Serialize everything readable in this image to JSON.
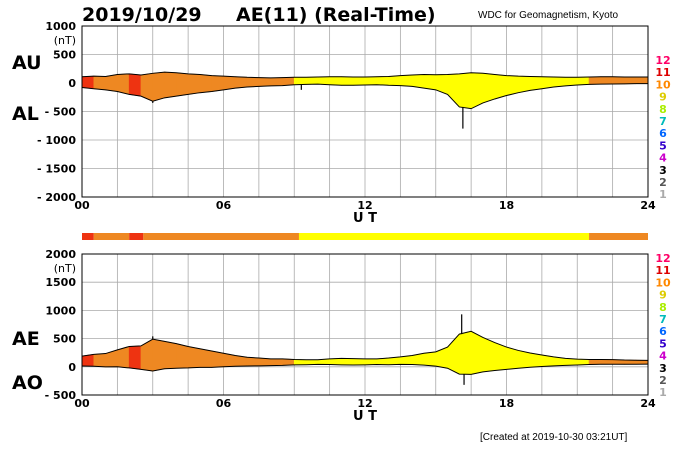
{
  "header": {
    "date": "2019/10/29",
    "title": "AE(11) (Real-Time)",
    "source": "WDC for Geomagnetism, Kyoto",
    "created": "[Created at 2019-10-30 03:21UT]"
  },
  "chart_data": [
    {
      "type": "area",
      "id": "au_al",
      "index_labels": [
        "AU",
        "AL"
      ],
      "unit": "(nT)",
      "xlabel": "U T",
      "ylim": [
        -2000,
        1000
      ],
      "yticks": [
        "1000",
        "500",
        "0",
        "- 500",
        "- 1000",
        "- 1500",
        "- 2000"
      ],
      "yticks_values": [
        1000,
        500,
        0,
        -500,
        -1000,
        -1500,
        -2000
      ],
      "xlim": [
        0,
        24
      ],
      "xticks": [
        "00",
        "06",
        "12",
        "18",
        "24"
      ],
      "series": [
        {
          "name": "AU",
          "x": [
            0,
            0.5,
            1,
            1.5,
            2,
            2.5,
            3,
            3.5,
            4,
            4.5,
            5,
            5.5,
            6,
            6.5,
            7,
            7.5,
            8,
            8.5,
            9,
            9.5,
            10,
            10.5,
            11,
            11.5,
            12,
            12.5,
            13,
            13.5,
            14,
            14.5,
            15,
            15.5,
            16,
            16.5,
            17,
            17.5,
            18,
            18.5,
            19,
            19.5,
            20,
            20.5,
            21,
            21.5,
            22,
            22.5,
            23,
            23.5,
            24
          ],
          "values": [
            110,
            120,
            115,
            150,
            160,
            140,
            170,
            190,
            180,
            160,
            150,
            130,
            120,
            110,
            100,
            95,
            90,
            95,
            100,
            100,
            105,
            110,
            110,
            105,
            105,
            110,
            115,
            130,
            140,
            150,
            145,
            150,
            160,
            180,
            170,
            150,
            130,
            120,
            115,
            110,
            105,
            100,
            100,
            105,
            110,
            110,
            105,
            105,
            105
          ]
        },
        {
          "name": "AL",
          "x": [
            0,
            0.5,
            1,
            1.5,
            2,
            2.5,
            3,
            3.5,
            4,
            4.5,
            5,
            5.5,
            6,
            6.5,
            7,
            7.5,
            8,
            8.5,
            9,
            9.5,
            10,
            10.5,
            11,
            11.5,
            12,
            12.5,
            13,
            13.5,
            14,
            14.5,
            15,
            15.5,
            16,
            16.5,
            17,
            17.5,
            18,
            18.5,
            19,
            19.5,
            20,
            20.5,
            21,
            21.5,
            22,
            22.5,
            23,
            23.5,
            24
          ],
          "values": [
            -80,
            -100,
            -120,
            -150,
            -200,
            -230,
            -320,
            -260,
            -230,
            -200,
            -170,
            -150,
            -120,
            -90,
            -70,
            -60,
            -50,
            -45,
            -30,
            -25,
            -20,
            -30,
            -40,
            -40,
            -35,
            -30,
            -40,
            -45,
            -60,
            -90,
            -120,
            -200,
            -420,
            -450,
            -350,
            -280,
            -220,
            -170,
            -130,
            -100,
            -70,
            -50,
            -35,
            -25,
            -20,
            -18,
            -15,
            -12,
            -10
          ]
        }
      ],
      "spikes": [
        {
          "x": 16.15,
          "y": -800
        },
        {
          "x": 3.0,
          "y": -350
        },
        {
          "x": 9.3,
          "y": -120
        }
      ]
    },
    {
      "type": "area",
      "id": "ae_ao",
      "index_labels": [
        "AE",
        "AO"
      ],
      "unit": "(nT)",
      "xlabel": "U T",
      "ylim": [
        -500,
        2000
      ],
      "yticks": [
        "2000",
        "1500",
        "1000",
        "500",
        "0",
        "- 500"
      ],
      "yticks_values": [
        2000,
        1500,
        1000,
        500,
        0,
        -500
      ],
      "xlim": [
        0,
        24
      ],
      "xticks": [
        "00",
        "06",
        "12",
        "18",
        "24"
      ],
      "series": [
        {
          "name": "AE",
          "x": [
            0,
            0.5,
            1,
            1.5,
            2,
            2.5,
            3,
            3.5,
            4,
            4.5,
            5,
            5.5,
            6,
            6.5,
            7,
            7.5,
            8,
            8.5,
            9,
            9.5,
            10,
            10.5,
            11,
            11.5,
            12,
            12.5,
            13,
            13.5,
            14,
            14.5,
            15,
            15.5,
            16,
            16.5,
            17,
            17.5,
            18,
            18.5,
            19,
            19.5,
            20,
            20.5,
            21,
            21.5,
            22,
            22.5,
            23,
            23.5,
            24
          ],
          "values": [
            190,
            220,
            235,
            300,
            360,
            370,
            490,
            450,
            410,
            360,
            320,
            280,
            240,
            200,
            170,
            155,
            140,
            140,
            130,
            125,
            125,
            140,
            150,
            145,
            140,
            140,
            155,
            175,
            200,
            240,
            265,
            350,
            580,
            630,
            520,
            430,
            350,
            290,
            245,
            210,
            175,
            150,
            135,
            130,
            130,
            128,
            120,
            117,
            115
          ]
        },
        {
          "name": "AO",
          "x": [
            0,
            0.5,
            1,
            1.5,
            2,
            2.5,
            3,
            3.5,
            4,
            4.5,
            5,
            5.5,
            6,
            6.5,
            7,
            7.5,
            8,
            8.5,
            9,
            9.5,
            10,
            10.5,
            11,
            11.5,
            12,
            12.5,
            13,
            13.5,
            14,
            14.5,
            15,
            15.5,
            16,
            16.5,
            17,
            17.5,
            18,
            18.5,
            19,
            19.5,
            20,
            20.5,
            21,
            21.5,
            22,
            22.5,
            23,
            23.5,
            24
          ],
          "values": [
            15,
            10,
            -2,
            0,
            -20,
            -45,
            -75,
            -35,
            -25,
            -20,
            -10,
            -10,
            0,
            10,
            15,
            17,
            20,
            25,
            35,
            37,
            42,
            40,
            35,
            32,
            35,
            40,
            37,
            42,
            40,
            30,
            12,
            -25,
            -130,
            -135,
            -90,
            -65,
            -45,
            -25,
            -7,
            5,
            17,
            25,
            32,
            40,
            45,
            46,
            45,
            46,
            47
          ]
        }
      ],
      "spikes": [
        {
          "x": 16.1,
          "y": 930
        },
        {
          "x": 16.2,
          "y": -320
        },
        {
          "x": 3.0,
          "y": 540
        }
      ]
    }
  ],
  "activity_scale": {
    "labels": [
      "12",
      "11",
      "10",
      "9",
      "8",
      "7",
      "6",
      "5",
      "4",
      "3",
      "2",
      "1"
    ],
    "colors": [
      "#ff0066",
      "#dd0000",
      "#ff8800",
      "#ddcc00",
      "#aaee00",
      "#00bbbb",
      "#0066ff",
      "#3300cc",
      "#cc00cc",
      "#000000",
      "#555555",
      "#aaaaaa"
    ]
  },
  "activity_bar": [
    {
      "from": 0,
      "to": 0.5,
      "level": 11
    },
    {
      "from": 0.5,
      "to": 2.0,
      "level": 10
    },
    {
      "from": 2.0,
      "to": 2.6,
      "level": 11
    },
    {
      "from": 2.6,
      "to": 9.2,
      "level": 10
    },
    {
      "from": 9.2,
      "to": 21.5,
      "level": 9
    },
    {
      "from": 21.5,
      "to": 24,
      "level": 10
    }
  ],
  "level_colors": {
    "9": "#ffff00",
    "10": "#ee8822",
    "11": "#ee3311"
  }
}
